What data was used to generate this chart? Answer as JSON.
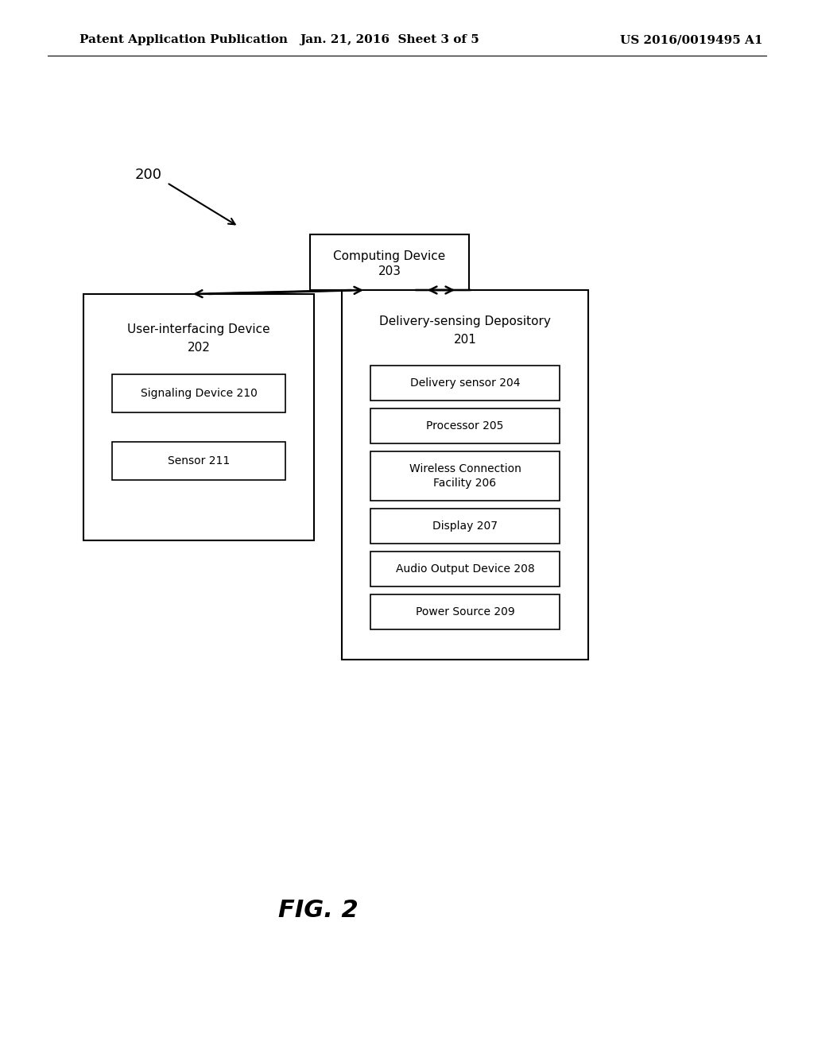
{
  "background_color": "#ffffff",
  "header_left": "Patent Application Publication",
  "header_mid": "Jan. 21, 2016  Sheet 3 of 5",
  "header_right": "US 2016/0019495 A1",
  "fig_label": "FIG. 2",
  "diagram_label": "200",
  "page_width": 10.24,
  "page_height": 13.2,
  "dpi": 100
}
